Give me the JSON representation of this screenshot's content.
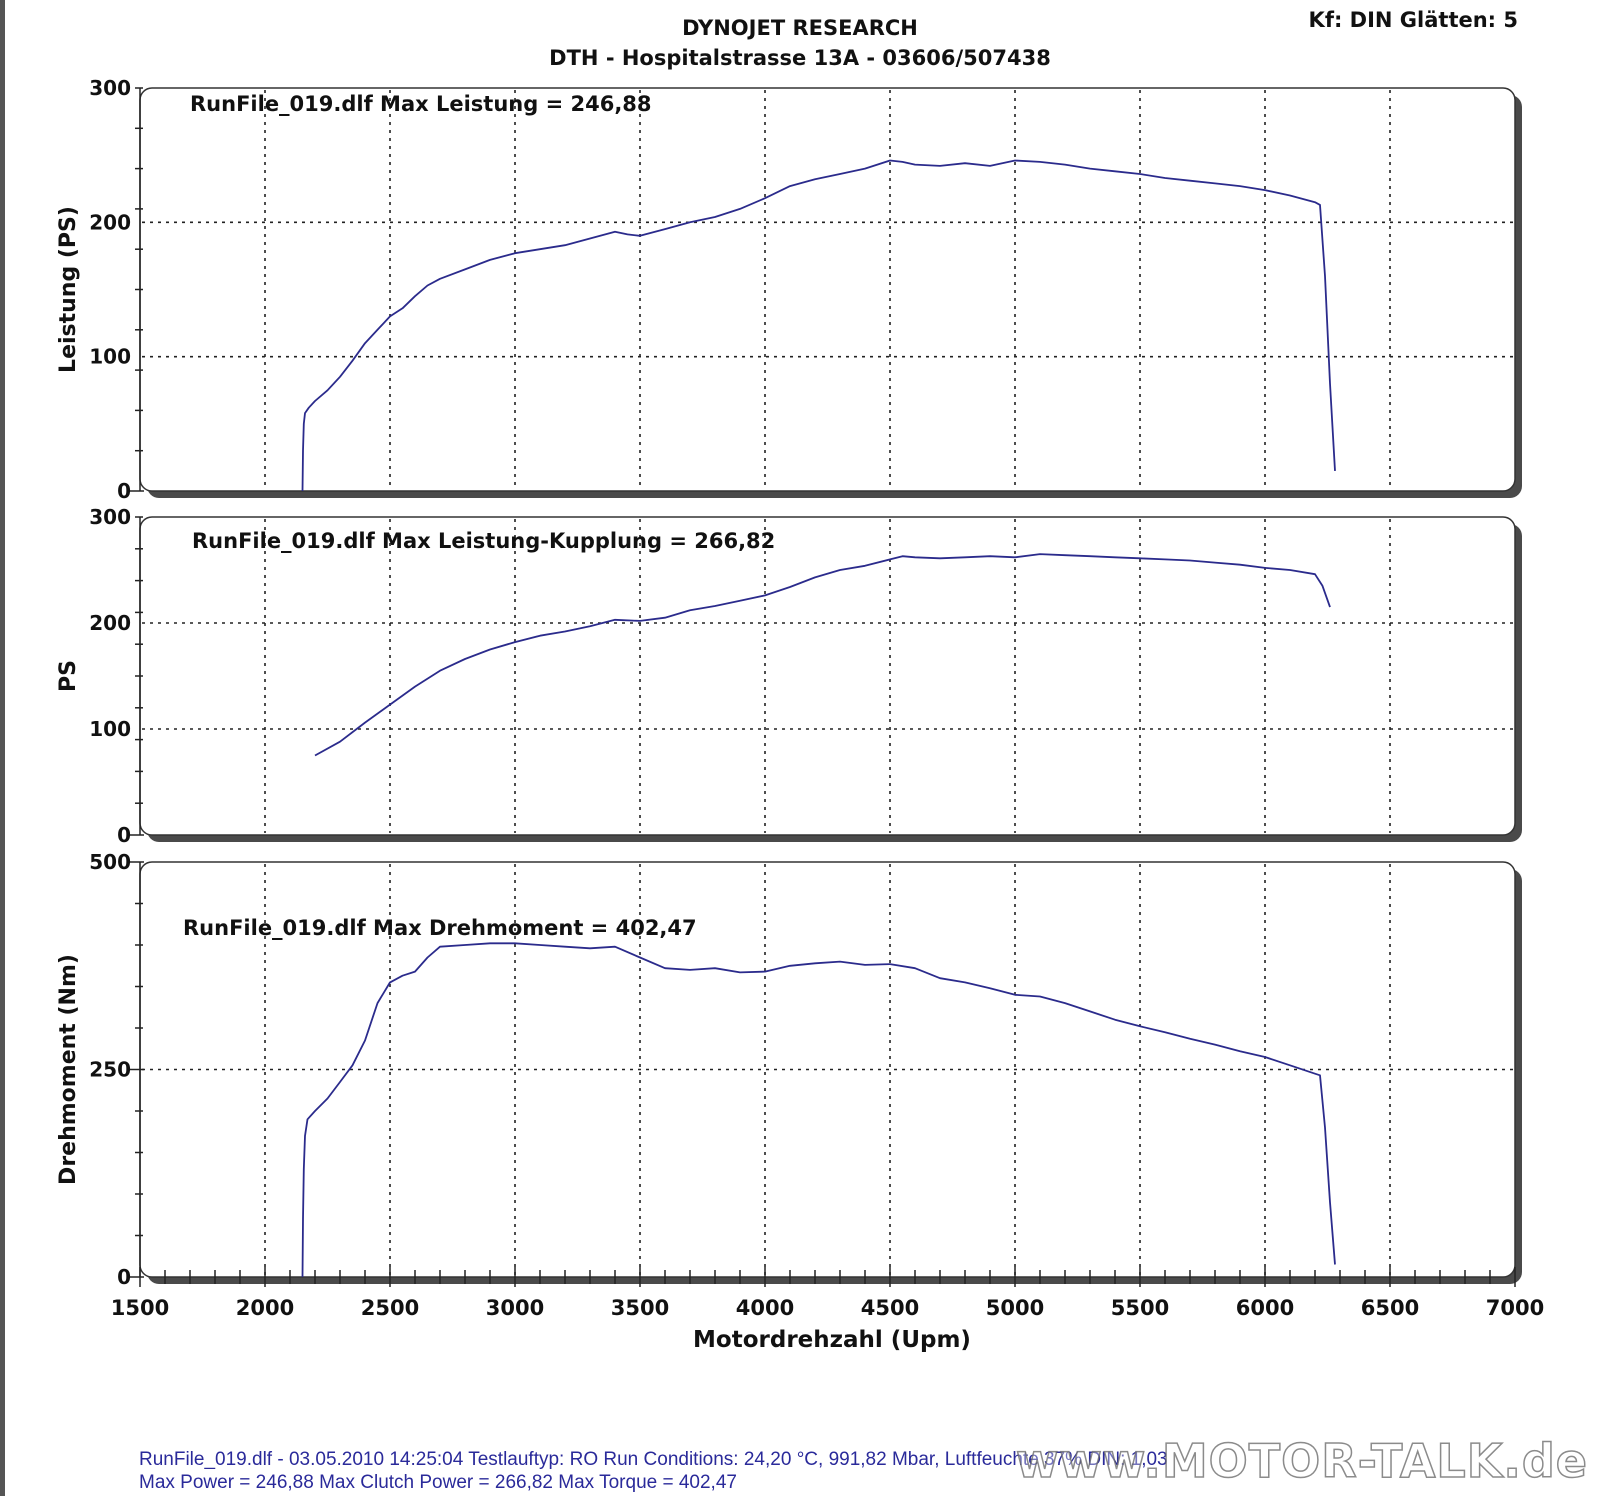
{
  "header": {
    "title": "DYNOJET RESEARCH",
    "subtitle": "DTH - Hospitalstrasse 13A - 03606/507438",
    "settings": "Kf: DIN  Glätten: 5"
  },
  "chart_data": [
    {
      "type": "line",
      "ylabel": "Leistung (PS)",
      "ylim": [
        0,
        300
      ],
      "yticks": [
        "0",
        "100",
        "200",
        "300"
      ],
      "annotation": "RunFile_019.dlf Max Leistung = 246,88",
      "grid": true,
      "line_color": "#2b2b8c",
      "series": [
        {
          "x": [
            2150,
            2152,
            2155,
            2160,
            2175,
            2200,
            2250,
            2300,
            2350,
            2400,
            2450,
            2500,
            2550,
            2600,
            2650,
            2700,
            2800,
            2900,
            3000,
            3100,
            3200,
            3300,
            3400,
            3450,
            3500,
            3600,
            3700,
            3800,
            3900,
            4000,
            4100,
            4200,
            4300,
            4400,
            4500,
            4550,
            4600,
            4700,
            4800,
            4900,
            5000,
            5100,
            5200,
            5300,
            5400,
            5500,
            5600,
            5700,
            5800,
            5900,
            6000,
            6100,
            6200,
            6220,
            6240,
            6260,
            6280
          ],
          "y": [
            0,
            30,
            50,
            58,
            62,
            67,
            75,
            85,
            97,
            110,
            120,
            130,
            136,
            145,
            153,
            158,
            165,
            172,
            177,
            180,
            183,
            188,
            193,
            191,
            190,
            195,
            200,
            204,
            210,
            218,
            227,
            232,
            236,
            240,
            246,
            245,
            243,
            242,
            244,
            242,
            246,
            245,
            243,
            240,
            238,
            236,
            233,
            231,
            229,
            227,
            224,
            220,
            215,
            213,
            160,
            80,
            15
          ]
        }
      ]
    },
    {
      "type": "line",
      "ylabel": "PS",
      "ylim": [
        0,
        300
      ],
      "yticks": [
        "0",
        "100",
        "200",
        "300"
      ],
      "annotation": "RunFile_019.dlf Max Leistung-Kupplung = 266,82",
      "grid": true,
      "line_color": "#2b2b8c",
      "series": [
        {
          "x": [
            2200,
            2300,
            2400,
            2500,
            2600,
            2700,
            2800,
            2900,
            3000,
            3100,
            3200,
            3300,
            3400,
            3500,
            3600,
            3700,
            3800,
            3900,
            4000,
            4100,
            4200,
            4300,
            4400,
            4500,
            4550,
            4600,
            4700,
            4800,
            4900,
            5000,
            5100,
            5200,
            5300,
            5400,
            5500,
            5600,
            5700,
            5800,
            5900,
            6000,
            6100,
            6200,
            6230,
            6260
          ],
          "y": [
            75,
            88,
            106,
            123,
            140,
            155,
            166,
            175,
            182,
            188,
            192,
            197,
            203,
            202,
            205,
            212,
            216,
            221,
            226,
            234,
            243,
            250,
            254,
            260,
            263,
            262,
            261,
            262,
            263,
            262,
            265,
            264,
            263,
            262,
            261,
            260,
            259,
            257,
            255,
            252,
            250,
            246,
            235,
            215
          ]
        }
      ]
    },
    {
      "type": "line",
      "ylabel": "Drehmoment (Nm)",
      "xlabel": "Motordrehzahl (Upm)",
      "xlim": [
        1500,
        7000
      ],
      "xticks": [
        "1500",
        "2000",
        "2500",
        "3000",
        "3500",
        "4000",
        "4500",
        "5000",
        "5500",
        "6000",
        "6500",
        "7000"
      ],
      "ylim": [
        0,
        500
      ],
      "yticks": [
        "0",
        "250",
        "500"
      ],
      "annotation": "RunFile_019.dlf Max Drehmoment = 402,47",
      "grid": true,
      "line_color": "#2b2b8c",
      "series": [
        {
          "x": [
            2150,
            2152,
            2155,
            2160,
            2170,
            2200,
            2250,
            2300,
            2350,
            2400,
            2450,
            2500,
            2550,
            2600,
            2650,
            2700,
            2800,
            2900,
            3000,
            3100,
            3200,
            3300,
            3400,
            3500,
            3600,
            3700,
            3800,
            3900,
            4000,
            4100,
            4200,
            4300,
            4400,
            4500,
            4600,
            4700,
            4800,
            4900,
            5000,
            5100,
            5200,
            5300,
            5400,
            5500,
            5600,
            5700,
            5800,
            5900,
            6000,
            6100,
            6200,
            6220,
            6240,
            6260,
            6280
          ],
          "y": [
            0,
            70,
            130,
            170,
            190,
            200,
            215,
            235,
            255,
            285,
            330,
            355,
            363,
            368,
            385,
            398,
            400,
            402,
            402,
            400,
            398,
            396,
            398,
            385,
            372,
            370,
            372,
            367,
            368,
            375,
            378,
            380,
            376,
            377,
            372,
            360,
            355,
            348,
            340,
            338,
            330,
            320,
            310,
            302,
            295,
            287,
            280,
            272,
            265,
            255,
            245,
            243,
            180,
            90,
            15
          ]
        }
      ]
    }
  ],
  "footer": {
    "line1": "RunFile_019.dlf - 03.05.2010 14:25:04  Testlauftyp: RO  Run Conditions: 24,20 °C, 991,82 Mbar,  Luftfeuchte 37%  DIN: 1,03",
    "line2": "Max Power = 246,88  Max Clutch Power = 266,82  Max Torque = 402,47",
    "watermark": "www.MOTOR-TALK.de"
  }
}
